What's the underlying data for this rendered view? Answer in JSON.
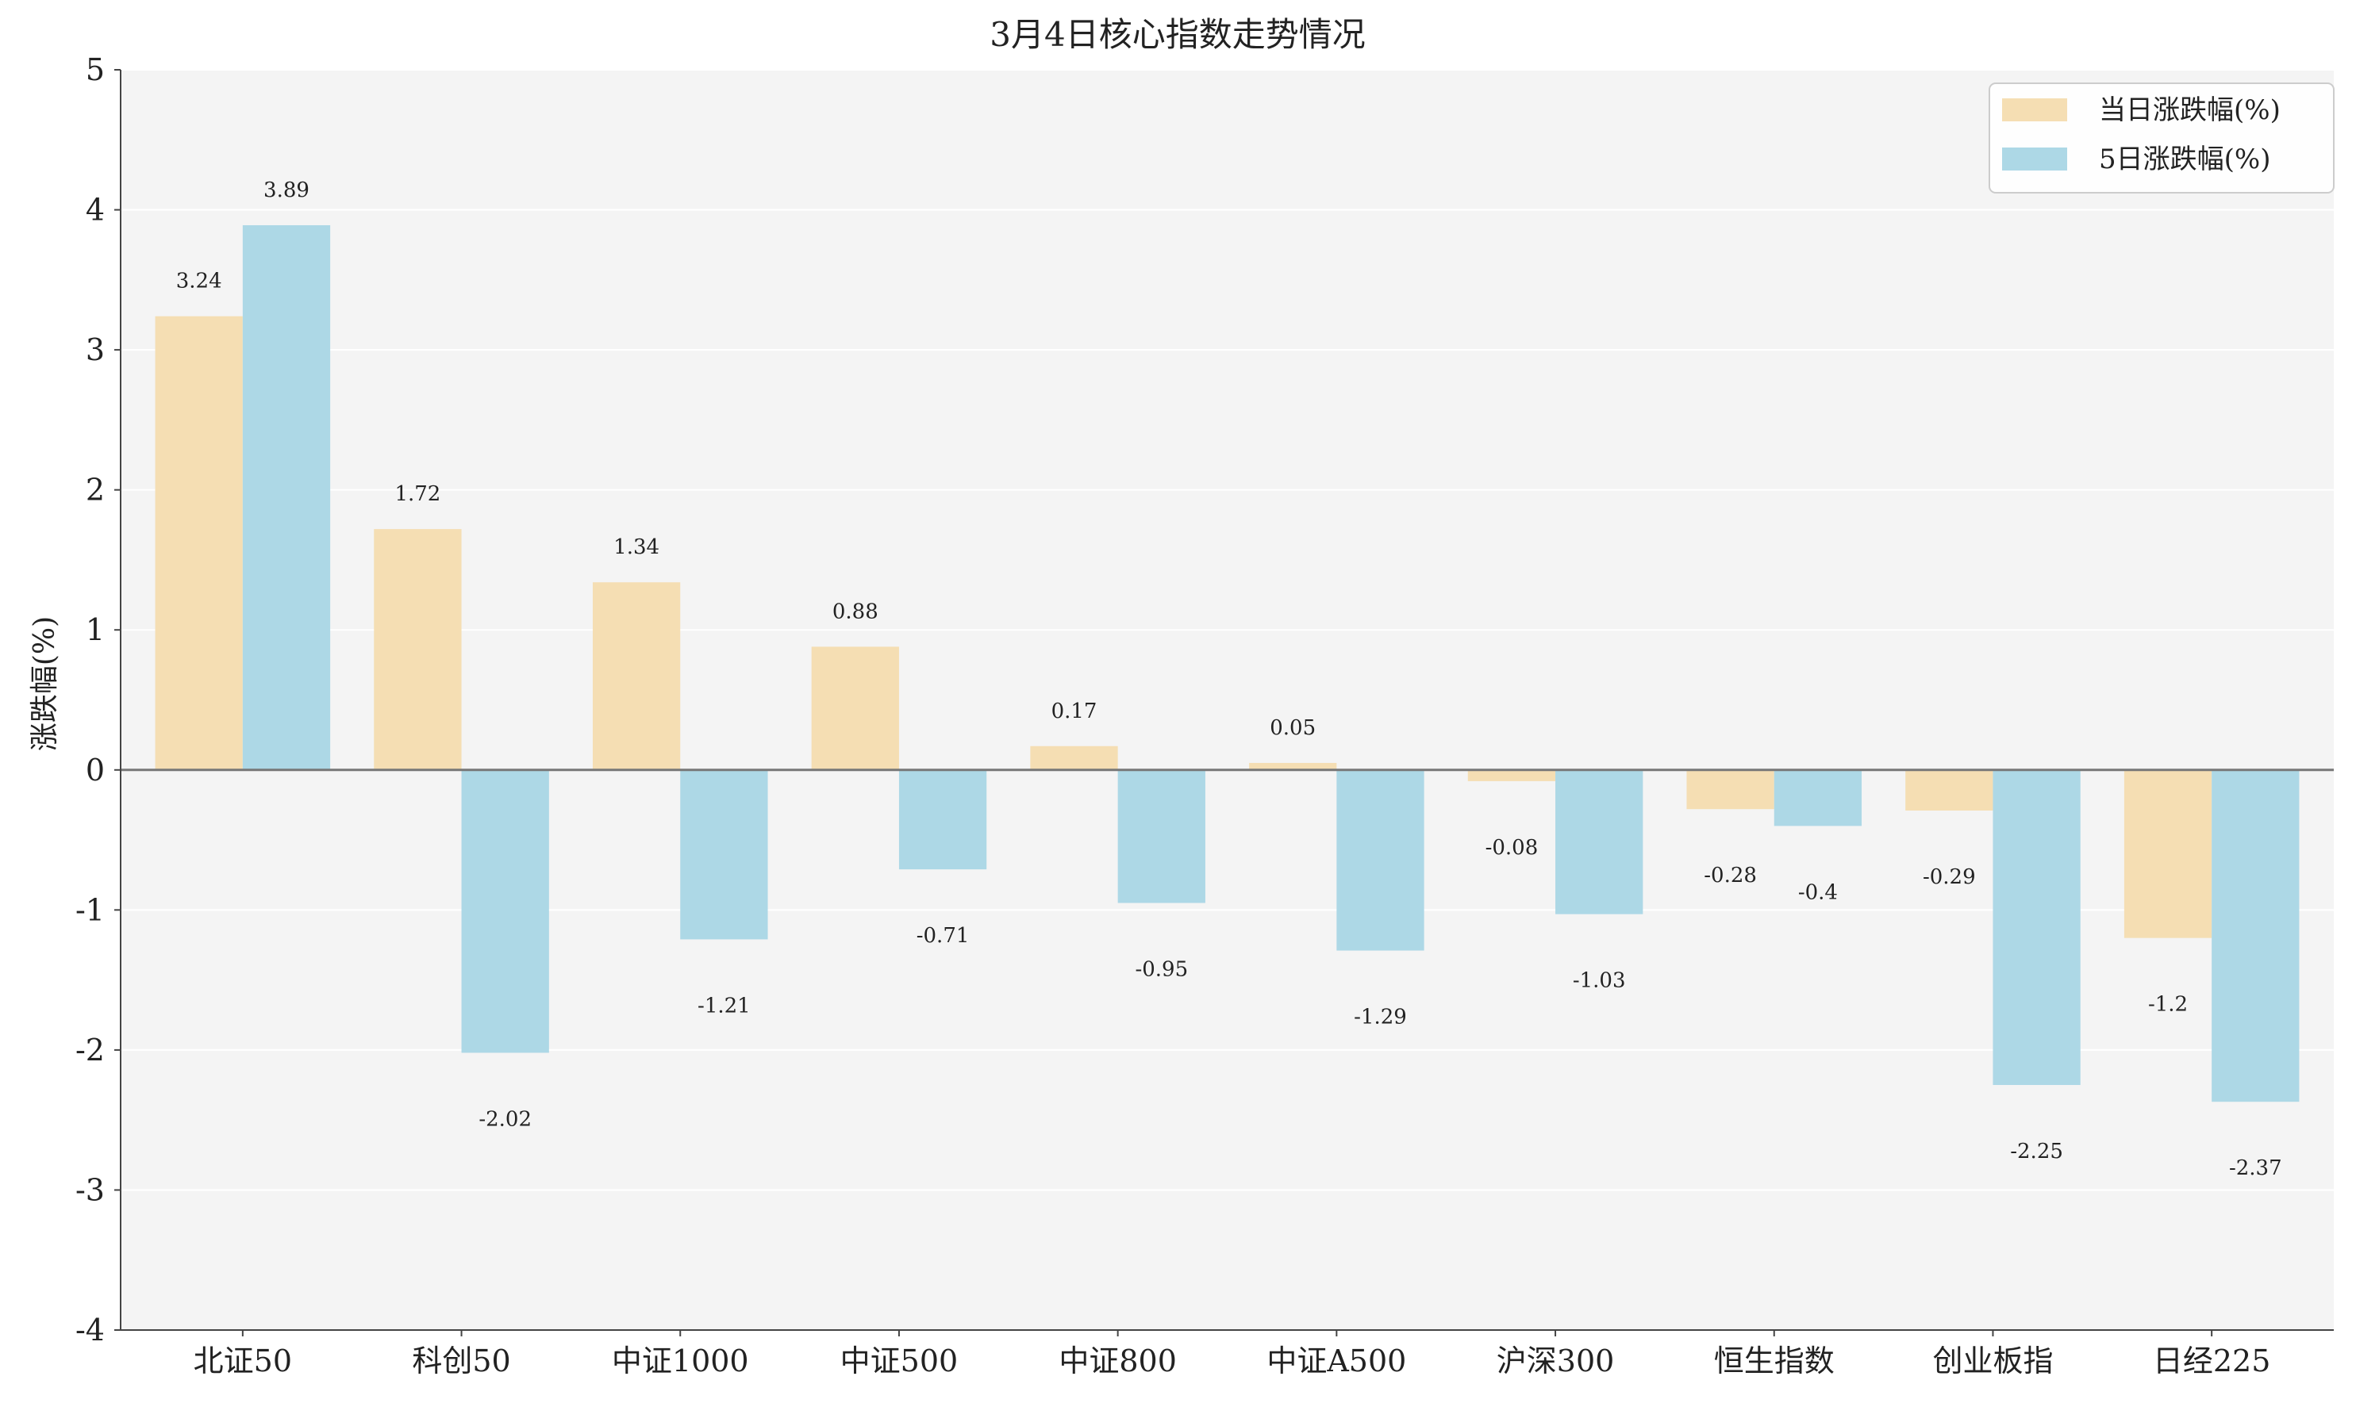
{
  "chart_data": {
    "type": "bar",
    "title": "3月4日核心指数走势情况",
    "xlabel": "",
    "ylabel": "涨跌幅(%)",
    "ylim": [
      -4,
      5
    ],
    "yticks": [
      -4,
      -3,
      -2,
      -1,
      0,
      1,
      2,
      3,
      4,
      5
    ],
    "categories": [
      "北证50",
      "科创50",
      "中证1000",
      "中证500",
      "中证800",
      "中证A500",
      "沪深300",
      "恒生指数",
      "创业板指",
      "日经225"
    ],
    "series": [
      {
        "name": "当日涨跌幅(%)",
        "color": "#f5deb3",
        "values": [
          3.24,
          1.72,
          1.34,
          0.88,
          0.17,
          0.05,
          -0.08,
          -0.28,
          -0.29,
          -1.2
        ]
      },
      {
        "name": "5日涨跌幅(%)",
        "color": "#add8e6",
        "values": [
          3.89,
          -2.02,
          -1.21,
          -0.71,
          -0.95,
          -1.29,
          -1.03,
          -0.4,
          -2.25,
          -2.37
        ]
      }
    ],
    "grid": true,
    "legend": "top-right",
    "colors": {
      "plot_background": "#f4f4f4",
      "grid": "#ffffff",
      "axis": "#444444",
      "zero_line": "#777777"
    }
  }
}
